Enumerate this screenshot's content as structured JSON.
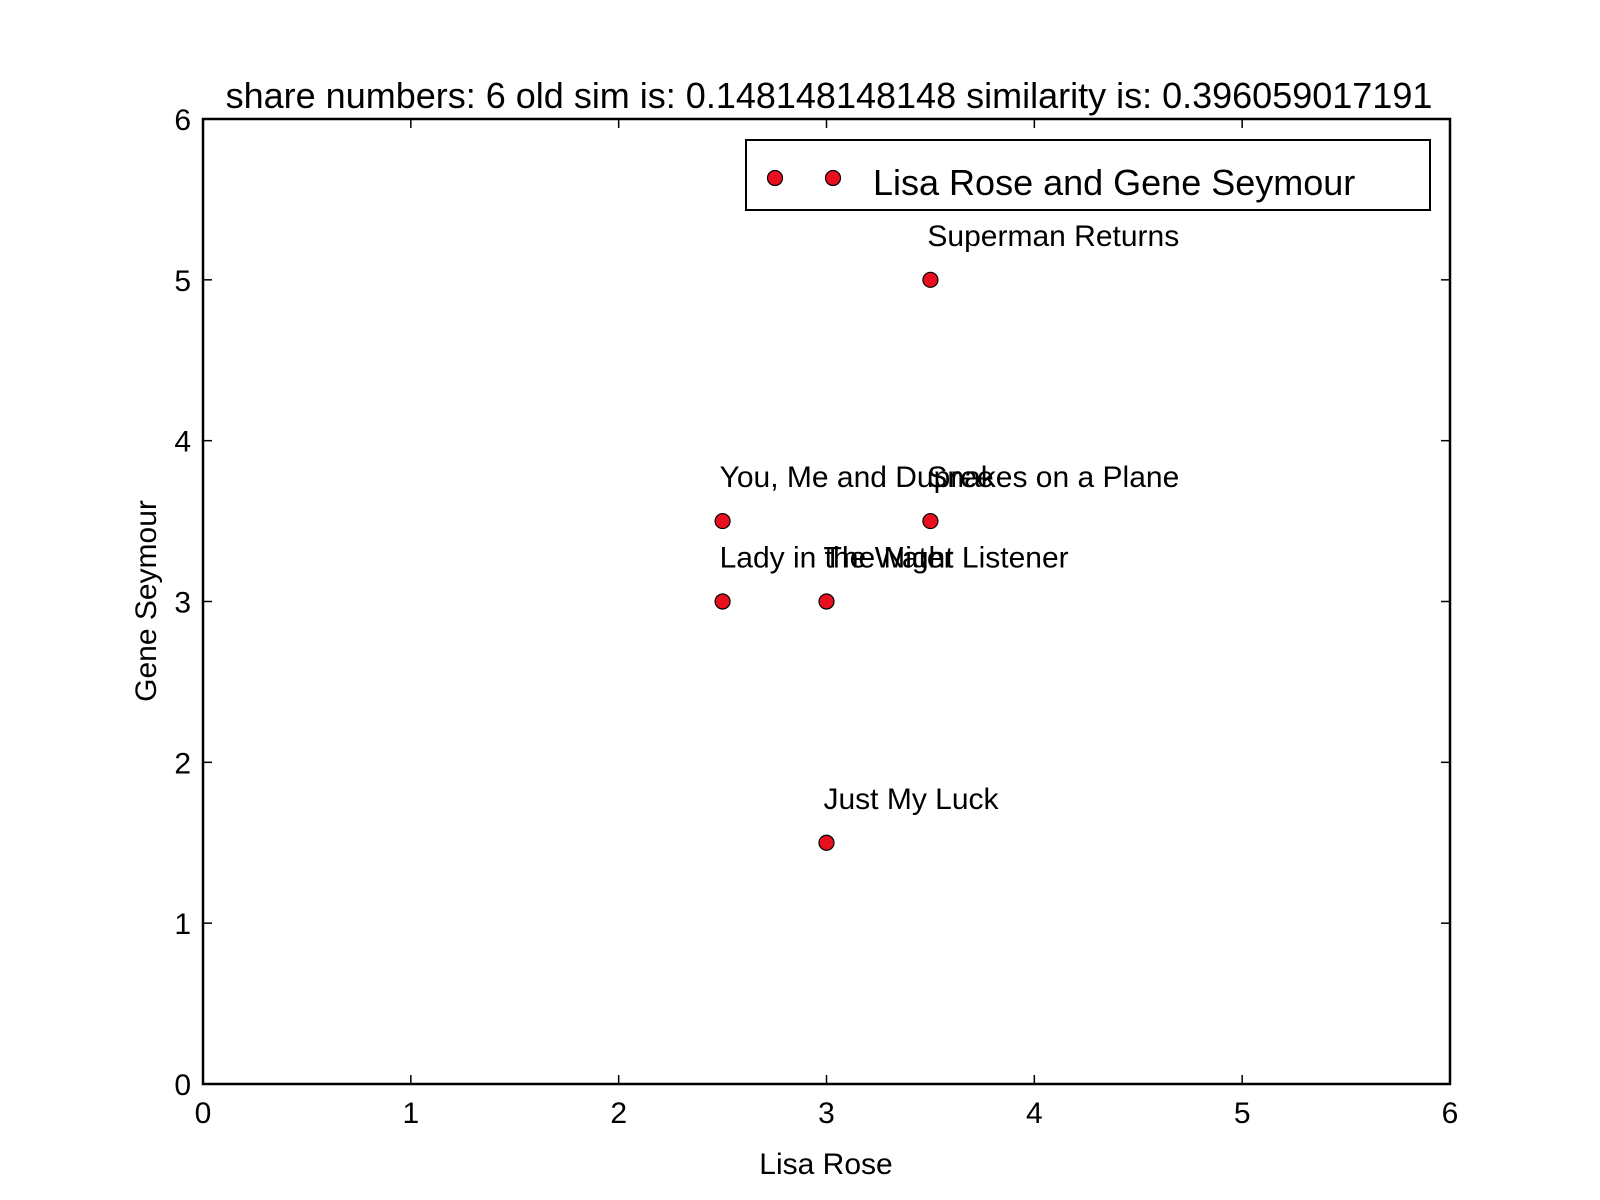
{
  "chart_data": {
    "type": "scatter",
    "title": "share numbers: 6 old sim is: 0.148148148148 similarity is: 0.396059017191",
    "xlabel": "Lisa Rose",
    "ylabel": "Gene Seymour",
    "xlim": [
      0,
      6
    ],
    "ylim": [
      0,
      6
    ],
    "xticks": [
      "0",
      "1",
      "2",
      "3",
      "4",
      "5",
      "6"
    ],
    "yticks": [
      "0",
      "1",
      "2",
      "3",
      "4",
      "5",
      "6"
    ],
    "grid": false,
    "legend": {
      "position": "top-right",
      "label": "Lisa Rose and Gene Seymour"
    },
    "series": [
      {
        "name": "Lisa Rose and Gene Seymour",
        "color": "#e8101e",
        "points": [
          {
            "label": "Superman Returns",
            "x": 3.5,
            "y": 5.0
          },
          {
            "label": "You, Me and Dupree",
            "x": 2.5,
            "y": 3.5
          },
          {
            "label": "Snakes on a Plane",
            "x": 3.5,
            "y": 3.5
          },
          {
            "label": "Lady in the Water",
            "x": 2.5,
            "y": 3.0
          },
          {
            "label": "The Night Listener",
            "x": 3.0,
            "y": 3.0
          },
          {
            "label": "Just My Luck",
            "x": 3.0,
            "y": 1.5
          }
        ]
      }
    ]
  }
}
